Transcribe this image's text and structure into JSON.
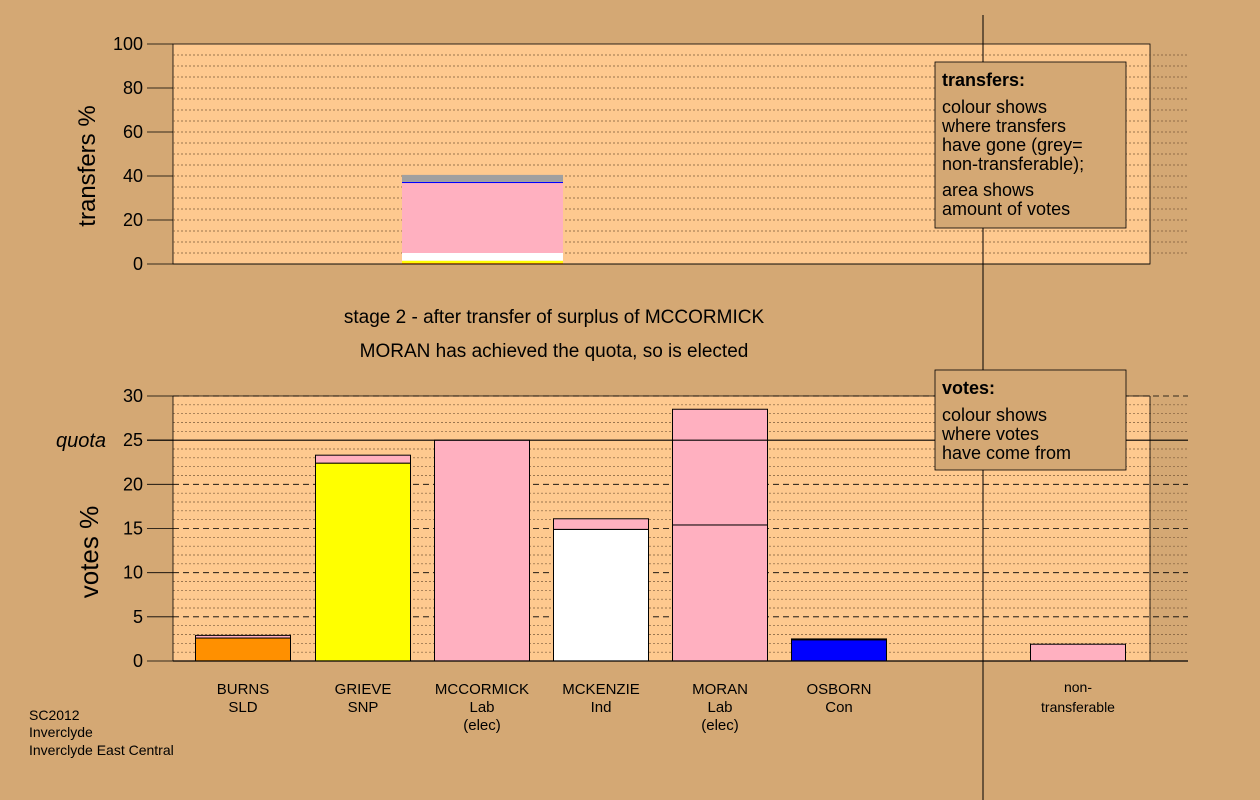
{
  "colors": {
    "background": "#d4a874",
    "plot_bg": "#fec98f",
    "SLD": "#ff9000",
    "SNP": "#ffff00",
    "Lab": "#ffb0c0",
    "Ind": "#ffffff",
    "Con": "#0000ff",
    "nontransferable": "#a0a0a0"
  },
  "caption": {
    "line1": "stage 2 - after transfer of surplus of MCCORMICK",
    "line2": "MORAN has achieved the quota, so is elected"
  },
  "footer": {
    "line1": "SC2012",
    "line2": "Inverclyde",
    "line3": "Inverclyde East Central"
  },
  "legend_transfers": {
    "title": "transfers:",
    "lines": [
      "colour shows",
      "where transfers",
      "have gone (grey=",
      "non-transferable);",
      "area shows",
      "amount of votes"
    ]
  },
  "legend_votes": {
    "title": "votes:",
    "lines": [
      "colour shows",
      "where votes",
      "have come from"
    ]
  },
  "chart_data": [
    {
      "type": "bar",
      "ylabel": "transfers %",
      "ylim": [
        0,
        100
      ],
      "yticks": [
        "0",
        "20",
        "40",
        "60",
        "80",
        "100"
      ],
      "stacked_bar": {
        "candidate": "MCCORMICK",
        "segments": [
          {
            "name": "SLD",
            "value": 0.5
          },
          {
            "name": "SNP",
            "value": 1.0
          },
          {
            "name": "Ind",
            "value": 3.5
          },
          {
            "name": "Lab",
            "value": 31.8
          },
          {
            "name": "Con",
            "value": 0.5
          },
          {
            "name": "nontransferable",
            "value": 3.2
          }
        ]
      }
    },
    {
      "type": "bar",
      "ylabel": "votes %",
      "ylim": [
        0,
        30
      ],
      "yticks": [
        "0",
        "5",
        "10",
        "15",
        "20",
        "25",
        "30"
      ],
      "quota": 25,
      "quota_label": "quota",
      "candidates": [
        {
          "name": "BURNS",
          "party": "SLD",
          "elec": "",
          "segments": [
            {
              "color": "SLD",
              "value": 2.6
            },
            {
              "color": "Lab",
              "value": 0.3
            }
          ]
        },
        {
          "name": "GRIEVE",
          "party": "SNP",
          "elec": "",
          "segments": [
            {
              "color": "SNP",
              "value": 22.4
            },
            {
              "color": "Lab",
              "value": 0.9
            }
          ]
        },
        {
          "name": "MCCORMICK",
          "party": "Lab",
          "elec": "(elec)",
          "segments": [
            {
              "color": "Lab",
              "value": 25.0
            }
          ]
        },
        {
          "name": "MCKENZIE",
          "party": "Ind",
          "elec": "",
          "segments": [
            {
              "color": "Ind",
              "value": 14.9
            },
            {
              "color": "Lab",
              "value": 1.2
            }
          ]
        },
        {
          "name": "MORAN",
          "party": "Lab",
          "elec": "(elec)",
          "segments": [
            {
              "color": "Lab",
              "value": 15.4
            },
            {
              "color": "Lab",
              "value": 13.1
            }
          ]
        },
        {
          "name": "OSBORN",
          "party": "Con",
          "elec": "",
          "segments": [
            {
              "color": "Con",
              "value": 2.4
            },
            {
              "color": "Lab",
              "value": 0.1
            }
          ]
        }
      ],
      "nontransferable": {
        "label_line1": "non-",
        "label_line2": "transferable",
        "segments": [
          {
            "color": "Lab",
            "value": 1.9
          }
        ]
      }
    }
  ]
}
